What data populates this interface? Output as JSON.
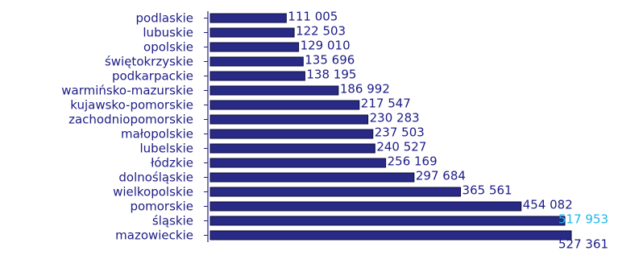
{
  "chart_data": {
    "type": "bar",
    "orientation": "horizontal",
    "title": "",
    "xlabel": "",
    "ylabel": "",
    "categories": [
      "podlaskie",
      "lubuskie",
      "opolskie",
      "świętokrzyskie",
      "podkarpackie",
      "warmińsko-mazurskie",
      "kujawsko-pomorskie",
      "zachodniopomorskie",
      "małopolskie",
      "lubelskie",
      "łódzkie",
      "dolnośląskie",
      "wielkopolskie",
      "pomorskie",
      "śląskie",
      "mazowieckie"
    ],
    "values": [
      111005,
      122503,
      129010,
      135696,
      138195,
      186992,
      217547,
      230283,
      237503,
      240527,
      256169,
      297684,
      365561,
      454082,
      517953,
      527361
    ],
    "value_labels": [
      "111 005",
      "122 503",
      "129 010",
      "135 696",
      "138 195",
      "186 992",
      "217 547",
      "230 283",
      "237 503",
      "240 527",
      "256 169",
      "297 684",
      "365 561",
      "454 082",
      "517 953",
      "527 361"
    ],
    "highlight_index": 14,
    "colors": {
      "bar_fill": "#282a86",
      "bar_stroke": "#0c0c3a",
      "axis": "#1c1c86",
      "label": "#1c1c86",
      "highlight_label": "#19b8e8"
    },
    "xlim": [
      0,
      527361
    ],
    "grid": false,
    "legend": "none"
  }
}
